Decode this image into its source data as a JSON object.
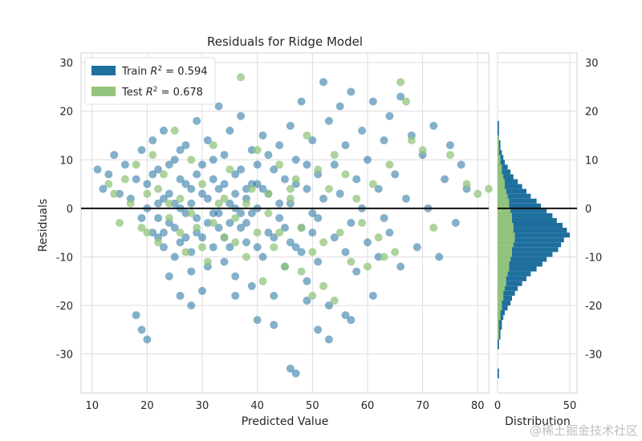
{
  "chart_data": {
    "type": "scatter",
    "title": "Residuals for Ridge Model",
    "xlabel": "Predicted Value",
    "ylabel": "Residuals",
    "xlim": [
      8,
      82
    ],
    "ylim": [
      -38,
      32
    ],
    "xticks": [
      10,
      20,
      30,
      40,
      50,
      60,
      70,
      80
    ],
    "yticks": [
      -30,
      -20,
      -10,
      0,
      10,
      20,
      30
    ],
    "grid": true,
    "legend_position": "top-left",
    "series": [
      {
        "name": "Train R² = 0.594",
        "legend_prefix": "Train ",
        "legend_suffix": " = 0.594",
        "color": "#1f6f9e",
        "points": [
          [
            11,
            8
          ],
          [
            12,
            4
          ],
          [
            13,
            7
          ],
          [
            14,
            11
          ],
          [
            15,
            3
          ],
          [
            16,
            9
          ],
          [
            17,
            2
          ],
          [
            18,
            6
          ],
          [
            19,
            -2
          ],
          [
            19,
            12
          ],
          [
            20,
            5
          ],
          [
            21,
            -5
          ],
          [
            21,
            14
          ],
          [
            22,
            1
          ],
          [
            22,
            8
          ],
          [
            23,
            -8
          ],
          [
            23,
            16
          ],
          [
            24,
            3
          ],
          [
            24,
            -3
          ],
          [
            25,
            10
          ],
          [
            25,
            -10
          ],
          [
            26,
            6
          ],
          [
            26,
            0
          ],
          [
            27,
            13
          ],
          [
            27,
            -6
          ],
          [
            28,
            4
          ],
          [
            28,
            -13
          ],
          [
            29,
            18
          ],
          [
            29,
            -2
          ],
          [
            30,
            9
          ],
          [
            30,
            -17
          ],
          [
            31,
            2
          ],
          [
            31,
            14
          ],
          [
            32,
            -8
          ],
          [
            32,
            6
          ],
          [
            33,
            21
          ],
          [
            33,
            -4
          ],
          [
            34,
            11
          ],
          [
            34,
            -11
          ],
          [
            35,
            1
          ],
          [
            35,
            16
          ],
          [
            36,
            -14
          ],
          [
            36,
            7
          ],
          [
            37,
            -1
          ],
          [
            37,
            19
          ],
          [
            38,
            4
          ],
          [
            38,
            -7
          ],
          [
            39,
            12
          ],
          [
            39,
            -16
          ],
          [
            40,
            0
          ],
          [
            40,
            9
          ],
          [
            41,
            -10
          ],
          [
            41,
            15
          ],
          [
            42,
            3
          ],
          [
            42,
            -5
          ],
          [
            43,
            8
          ],
          [
            43,
            -18
          ],
          [
            44,
            13
          ],
          [
            44,
            -2
          ],
          [
            45,
            6
          ],
          [
            45,
            -12
          ],
          [
            46,
            17
          ],
          [
            46,
            1
          ],
          [
            47,
            -8
          ],
          [
            47,
            10
          ],
          [
            48,
            22
          ],
          [
            48,
            -4
          ],
          [
            49,
            4
          ],
          [
            49,
            -15
          ],
          [
            50,
            14
          ],
          [
            50,
            -1
          ],
          [
            51,
            7
          ],
          [
            51,
            -11
          ],
          [
            52,
            26
          ],
          [
            52,
            2
          ],
          [
            53,
            -20
          ],
          [
            53,
            18
          ],
          [
            54,
            9
          ],
          [
            54,
            -6
          ],
          [
            55,
            21
          ],
          [
            55,
            3
          ],
          [
            56,
            -9
          ],
          [
            56,
            13
          ],
          [
            57,
            -3
          ],
          [
            57,
            24
          ],
          [
            58,
            6
          ],
          [
            58,
            -13
          ],
          [
            59,
            16
          ],
          [
            59,
            0
          ],
          [
            60,
            -7
          ],
          [
            60,
            10
          ],
          [
            61,
            -18
          ],
          [
            61,
            22
          ],
          [
            62,
            4
          ],
          [
            62,
            -10
          ],
          [
            63,
            14
          ],
          [
            63,
            -2
          ],
          [
            64,
            19
          ],
          [
            64,
            -5
          ],
          [
            65,
            7
          ],
          [
            66,
            -12
          ],
          [
            66,
            23
          ],
          [
            67,
            2
          ],
          [
            68,
            15
          ],
          [
            69,
            -8
          ],
          [
            70,
            11
          ],
          [
            71,
            0
          ],
          [
            72,
            17
          ],
          [
            73,
            -10
          ],
          [
            74,
            6
          ],
          [
            75,
            13
          ],
          [
            76,
            -3
          ],
          [
            77,
            9
          ],
          [
            78,
            4
          ],
          [
            18,
            -22
          ],
          [
            19,
            -25
          ],
          [
            20,
            -27
          ],
          [
            24,
            -14
          ],
          [
            26,
            -18
          ],
          [
            28,
            -20
          ],
          [
            36,
            -18
          ],
          [
            40,
            -23
          ],
          [
            43,
            -24
          ],
          [
            46,
            -33
          ],
          [
            47,
            -34
          ],
          [
            49,
            -19
          ],
          [
            51,
            -25
          ],
          [
            53,
            -27
          ],
          [
            56,
            -22
          ],
          [
            57,
            -23
          ],
          [
            22,
            -6
          ],
          [
            23,
            2
          ],
          [
            24,
            9
          ],
          [
            25,
            -4
          ],
          [
            26,
            12
          ],
          [
            27,
            5
          ],
          [
            28,
            -9
          ],
          [
            29,
            7
          ],
          [
            30,
            -6
          ],
          [
            31,
            -12
          ],
          [
            32,
            10
          ],
          [
            33,
            -1
          ],
          [
            34,
            5
          ],
          [
            35,
            -8
          ],
          [
            36,
            3
          ],
          [
            37,
            8
          ],
          [
            38,
            -3
          ],
          [
            39,
            5
          ],
          [
            40,
            -8
          ],
          [
            41,
            4
          ],
          [
            42,
            11
          ],
          [
            43,
            -6
          ],
          [
            44,
            1
          ],
          [
            45,
            -4
          ],
          [
            46,
            -7
          ],
          [
            47,
            5
          ],
          [
            48,
            -9
          ],
          [
            49,
            9
          ],
          [
            50,
            -5
          ],
          [
            51,
            -2
          ],
          [
            20,
            0
          ],
          [
            21,
            7
          ],
          [
            22,
            -2
          ],
          [
            23,
            -5
          ],
          [
            25,
            1
          ],
          [
            26,
            -7
          ],
          [
            27,
            -1
          ],
          [
            28,
            1
          ],
          [
            29,
            -5
          ],
          [
            30,
            3
          ],
          [
            31,
            -3
          ],
          [
            32,
            -1
          ],
          [
            33,
            4
          ],
          [
            34,
            -6
          ],
          [
            35,
            -3
          ],
          [
            36,
            0
          ],
          [
            37,
            -4
          ],
          [
            38,
            2
          ],
          [
            39,
            -1
          ],
          [
            40,
            5
          ]
        ]
      },
      {
        "name": "Test R² = 0.678",
        "legend_prefix": "Test ",
        "legend_suffix": " = 0.678",
        "color": "#93c47d",
        "points": [
          [
            13,
            5
          ],
          [
            14,
            3
          ],
          [
            15,
            -3
          ],
          [
            16,
            6
          ],
          [
            17,
            1
          ],
          [
            18,
            9
          ],
          [
            19,
            -4
          ],
          [
            20,
            3
          ],
          [
            21,
            11
          ],
          [
            22,
            -7
          ],
          [
            23,
            7
          ],
          [
            24,
            -2
          ],
          [
            25,
            16
          ],
          [
            26,
            2
          ],
          [
            27,
            -9
          ],
          [
            28,
            10
          ],
          [
            29,
            -4
          ],
          [
            30,
            5
          ],
          [
            31,
            -11
          ],
          [
            32,
            13
          ],
          [
            33,
            1
          ],
          [
            34,
            -6
          ],
          [
            35,
            8
          ],
          [
            36,
            -2
          ],
          [
            37,
            27
          ],
          [
            38,
            -10
          ],
          [
            39,
            4
          ],
          [
            40,
            12
          ],
          [
            41,
            -15
          ],
          [
            42,
            3
          ],
          [
            43,
            -8
          ],
          [
            44,
            9
          ],
          [
            45,
            -12
          ],
          [
            46,
            2
          ],
          [
            47,
            6
          ],
          [
            48,
            -4
          ],
          [
            49,
            15
          ],
          [
            50,
            -9
          ],
          [
            51,
            8
          ],
          [
            52,
            -16
          ],
          [
            53,
            4
          ],
          [
            54,
            11
          ],
          [
            55,
            -5
          ],
          [
            56,
            7
          ],
          [
            57,
            -11
          ],
          [
            58,
            2
          ],
          [
            59,
            -3
          ],
          [
            60,
            -12
          ],
          [
            61,
            5
          ],
          [
            62,
            -6
          ],
          [
            63,
            -10
          ],
          [
            64,
            9
          ],
          [
            65,
            -9
          ],
          [
            66,
            26
          ],
          [
            67,
            22
          ],
          [
            68,
            14
          ],
          [
            70,
            12
          ],
          [
            72,
            -4
          ],
          [
            75,
            11
          ],
          [
            78,
            5
          ],
          [
            80,
            3
          ],
          [
            82,
            4
          ],
          [
            20,
            -5
          ],
          [
            22,
            4
          ],
          [
            24,
            1
          ],
          [
            26,
            -5
          ],
          [
            28,
            -1
          ],
          [
            30,
            -8
          ],
          [
            32,
            -3
          ],
          [
            34,
            2
          ],
          [
            36,
            -7
          ],
          [
            38,
            1
          ],
          [
            40,
            -5
          ],
          [
            42,
            -1
          ],
          [
            44,
            -5
          ],
          [
            46,
            4
          ],
          [
            48,
            -13
          ],
          [
            50,
            -18
          ],
          [
            52,
            -7
          ],
          [
            54,
            -19
          ]
        ]
      }
    ],
    "distribution": {
      "xlabel": "Distribution",
      "xlim": [
        0,
        55
      ],
      "xticks": [
        0,
        50
      ],
      "bin_edges_start": -38,
      "bin_width": 1,
      "train_counts": [
        0,
        0,
        0,
        1,
        1,
        0,
        0,
        0,
        0,
        1,
        1,
        2,
        2,
        3,
        3,
        4,
        5,
        7,
        9,
        10,
        12,
        14,
        17,
        20,
        23,
        27,
        31,
        34,
        38,
        42,
        44,
        46,
        50,
        48,
        45,
        41,
        38,
        34,
        30,
        27,
        23,
        20,
        17,
        14,
        11,
        9,
        7,
        5,
        4,
        3,
        2,
        2,
        1,
        1,
        1,
        1,
        0,
        0,
        0,
        0,
        0,
        0,
        0,
        0,
        0,
        0,
        0,
        0,
        0,
        0
      ],
      "test_counts": [
        0,
        0,
        0,
        0,
        0,
        0,
        0,
        0,
        0,
        0,
        0,
        1,
        1,
        1,
        1,
        2,
        2,
        3,
        3,
        4,
        4,
        5,
        6,
        6,
        7,
        8,
        8,
        9,
        10,
        10,
        11,
        12,
        12,
        11,
        11,
        10,
        10,
        9,
        8,
        8,
        7,
        6,
        5,
        5,
        4,
        3,
        3,
        2,
        2,
        1,
        1,
        1,
        1,
        0,
        0,
        0,
        0,
        0,
        0,
        0,
        0,
        0,
        0,
        0,
        0,
        0
      ]
    }
  },
  "watermark": "@稀土掘金技术社区"
}
